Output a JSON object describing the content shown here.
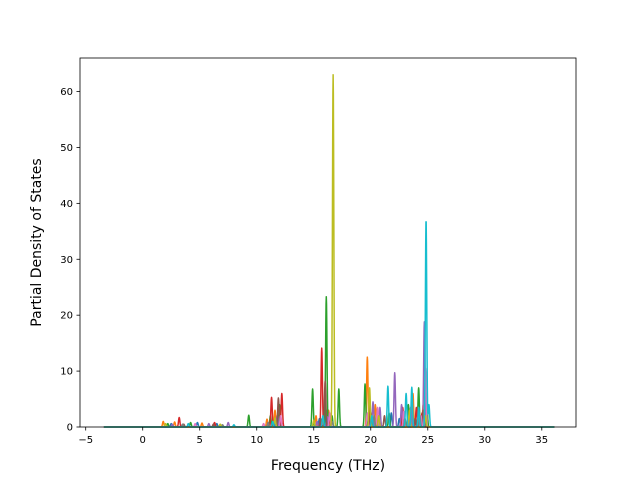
{
  "chart_data": {
    "type": "line",
    "title": "",
    "xlabel": "Frequency (THz)",
    "ylabel": "Partial Density of States",
    "xlim": [
      -5.5,
      38.0
    ],
    "ylim": [
      0,
      66
    ],
    "xticks": [
      -5,
      0,
      5,
      10,
      15,
      20,
      25,
      30,
      35
    ],
    "yticks": [
      0,
      10,
      20,
      30,
      40,
      50,
      60
    ],
    "grid": false,
    "legend": "none",
    "x_range": [
      -3.4,
      36.1
    ],
    "series": [
      {
        "color": "#1f77b4",
        "peaks": [
          [
            2.5,
            0.6
          ],
          [
            4.8,
            0.8
          ],
          [
            6.5,
            0.6
          ],
          [
            11.5,
            1.0
          ],
          [
            15.5,
            1.5
          ],
          [
            16.1,
            3.0
          ],
          [
            19.8,
            1.5
          ],
          [
            21.8,
            2.5
          ],
          [
            22.5,
            1.5
          ],
          [
            23.6,
            4.0
          ],
          [
            24.6,
            3.0
          ],
          [
            24.9,
            5.0
          ]
        ]
      },
      {
        "color": "#ff7f0e",
        "peaks": [
          [
            1.8,
            1.0
          ],
          [
            2.8,
            0.9
          ],
          [
            5.2,
            0.7
          ],
          [
            10.9,
            1.4
          ],
          [
            11.6,
            3.0
          ],
          [
            15.2,
            2.0
          ],
          [
            16.3,
            3.0
          ],
          [
            19.7,
            12.5
          ],
          [
            20.4,
            4.0
          ],
          [
            22.7,
            2.0
          ],
          [
            23.7,
            6.0
          ],
          [
            24.6,
            4.0
          ]
        ]
      },
      {
        "color": "#2ca02c",
        "peaks": [
          [
            2.2,
            0.6
          ],
          [
            4.2,
            0.8
          ],
          [
            9.3,
            2.1
          ],
          [
            11.2,
            2.0
          ],
          [
            12.0,
            4.0
          ],
          [
            14.9,
            6.8
          ],
          [
            16.1,
            23.3
          ],
          [
            16.6,
            2.0
          ],
          [
            17.2,
            6.8
          ],
          [
            19.5,
            7.7
          ],
          [
            21.6,
            2.5
          ],
          [
            23.3,
            4.0
          ],
          [
            24.2,
            7.0
          ],
          [
            24.9,
            6.0
          ]
        ]
      },
      {
        "color": "#d62728",
        "peaks": [
          [
            3.2,
            1.7
          ],
          [
            6.3,
            0.8
          ],
          [
            11.3,
            5.3
          ],
          [
            12.2,
            6.0
          ],
          [
            15.7,
            14.1
          ],
          [
            16.4,
            1.5
          ],
          [
            19.9,
            4.0
          ],
          [
            20.6,
            2.0
          ],
          [
            22.8,
            3.5
          ],
          [
            24.0,
            3.5
          ],
          [
            24.5,
            2.5
          ]
        ]
      },
      {
        "color": "#9467bd",
        "peaks": [
          [
            2.6,
            0.5
          ],
          [
            5.8,
            0.6
          ],
          [
            7.5,
            0.8
          ],
          [
            11.8,
            2.0
          ],
          [
            15.3,
            1.0
          ],
          [
            16.2,
            1.8
          ],
          [
            20.2,
            4.5
          ],
          [
            20.8,
            3.5
          ],
          [
            22.1,
            9.7
          ],
          [
            22.7,
            4.0
          ],
          [
            23.5,
            3.5
          ],
          [
            24.7,
            18.8
          ]
        ]
      },
      {
        "color": "#8c564b",
        "peaks": [
          [
            3.6,
            0.5
          ],
          [
            6.2,
            0.5
          ],
          [
            11.9,
            5.2
          ],
          [
            15.6,
            1.5
          ],
          [
            16.0,
            8.2
          ],
          [
            20.0,
            2.5
          ],
          [
            21.2,
            2.0
          ],
          [
            23.9,
            1.5
          ],
          [
            24.6,
            3.0
          ]
        ]
      },
      {
        "color": "#e377c2",
        "peaks": [
          [
            4.6,
            0.6
          ],
          [
            10.6,
            0.6
          ],
          [
            12.1,
            2.0
          ],
          [
            16.4,
            2.5
          ],
          [
            19.7,
            2.5
          ],
          [
            20.6,
            3.5
          ],
          [
            22.9,
            2.8
          ],
          [
            24.4,
            2.0
          ],
          [
            24.8,
            10.5
          ]
        ]
      },
      {
        "color": "#7f7f7f",
        "peaks": [
          [
            3.5,
            0.5
          ],
          [
            7.0,
            0.4
          ],
          [
            11.0,
            0.8
          ],
          [
            16.6,
            1.0
          ],
          [
            20.3,
            2.0
          ],
          [
            23.0,
            1.5
          ],
          [
            24.3,
            2.0
          ]
        ]
      },
      {
        "color": "#bcbd22",
        "peaks": [
          [
            2.0,
            0.6
          ],
          [
            6.8,
            0.5
          ],
          [
            11.6,
            1.6
          ],
          [
            15.0,
            1.2
          ],
          [
            16.7,
            63.0
          ],
          [
            19.9,
            7.0
          ],
          [
            20.7,
            2.0
          ],
          [
            23.4,
            3.0
          ],
          [
            24.8,
            2.0
          ]
        ]
      },
      {
        "color": "#17becf",
        "peaks": [
          [
            4.0,
            0.6
          ],
          [
            8.0,
            0.4
          ],
          [
            11.4,
            1.0
          ],
          [
            15.8,
            2.0
          ],
          [
            20.1,
            2.0
          ],
          [
            21.5,
            7.3
          ],
          [
            23.1,
            6.0
          ],
          [
            23.6,
            7.1
          ],
          [
            24.2,
            3.5
          ],
          [
            24.85,
            37.2
          ],
          [
            25.1,
            4.0
          ]
        ]
      }
    ]
  }
}
